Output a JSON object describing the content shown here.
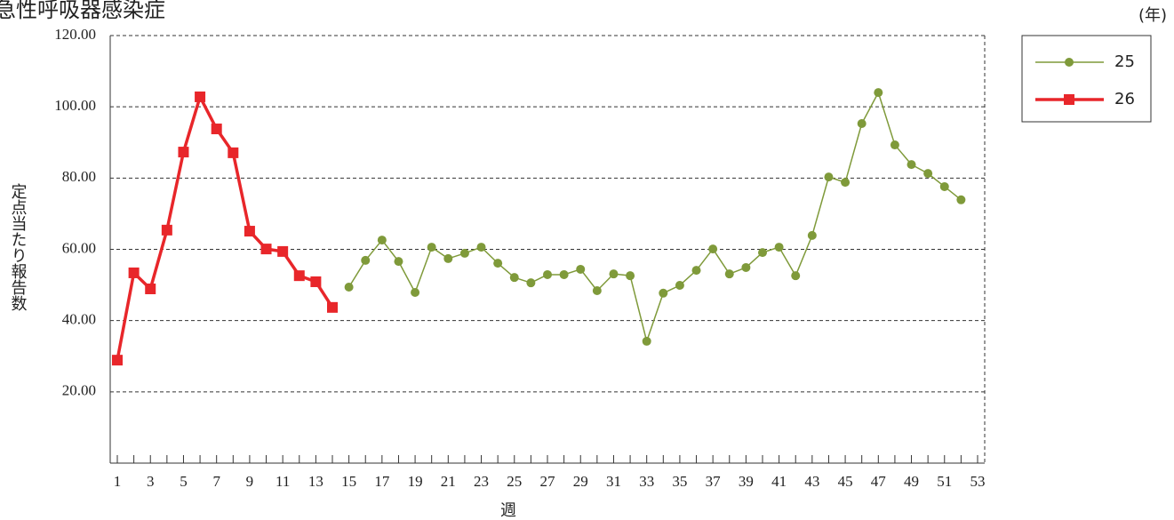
{
  "chart_data": {
    "type": "line",
    "title": "急性呼吸器感染症",
    "y_label": "定点当たり報告数",
    "x_label": "週",
    "legend_title": "(年)",
    "legend_position": "top-right",
    "grid": true,
    "categories": [
      "1",
      null,
      "3",
      null,
      "5",
      null,
      "7",
      null,
      "9",
      null,
      "11",
      null,
      "13",
      null,
      "15",
      null,
      "17",
      null,
      "19",
      null,
      "21",
      null,
      "23",
      null,
      "25",
      null,
      "27",
      null,
      "29",
      null,
      "31",
      null,
      "33",
      null,
      "35",
      null,
      "37",
      null,
      "39",
      null,
      "41",
      null,
      "43",
      null,
      "45",
      null,
      "47",
      null,
      "49",
      null,
      "51",
      null,
      "53"
    ],
    "ylim": [
      0,
      120
    ],
    "yticks": [
      {
        "value": 20,
        "label": "20.00"
      },
      {
        "value": 40,
        "label": "40.00"
      },
      {
        "value": 60,
        "label": "60.00"
      },
      {
        "value": 80,
        "label": "80.00"
      },
      {
        "value": 100,
        "label": "100.00"
      },
      {
        "value": 120,
        "label": "120.00"
      }
    ],
    "series": [
      {
        "name": "25",
        "color": "#7f9a3a",
        "marker": "circle",
        "values": [
          null,
          null,
          null,
          null,
          null,
          null,
          null,
          null,
          null,
          null,
          null,
          null,
          null,
          null,
          49.4,
          56.9,
          62.6,
          56.6,
          47.9,
          60.6,
          57.4,
          58.9,
          60.6,
          56.1,
          52.1,
          50.6,
          52.9,
          52.9,
          54.4,
          48.4,
          53.1,
          52.6,
          34.2,
          47.7,
          49.9,
          54.1,
          60.1,
          53.1,
          54.9,
          59.1,
          60.6,
          52.6,
          63.9,
          80.3,
          78.8,
          95.3,
          104.0,
          89.3,
          83.8,
          81.3,
          77.6,
          73.9,
          null
        ]
      },
      {
        "name": "26",
        "color": "#e8262a",
        "marker": "square",
        "values": [
          28.9,
          53.4,
          48.9,
          65.4,
          87.3,
          102.8,
          93.8,
          87.1,
          65.1,
          60.1,
          59.4,
          52.6,
          50.9,
          43.7,
          null,
          null,
          null,
          null,
          null,
          null,
          null,
          null,
          null,
          null,
          null,
          null,
          null,
          null,
          null,
          null,
          null,
          null,
          null,
          null,
          null,
          null,
          null,
          null,
          null,
          null,
          null,
          null,
          null,
          null,
          null,
          null,
          null,
          null,
          null,
          null,
          null,
          null,
          null
        ]
      }
    ]
  }
}
